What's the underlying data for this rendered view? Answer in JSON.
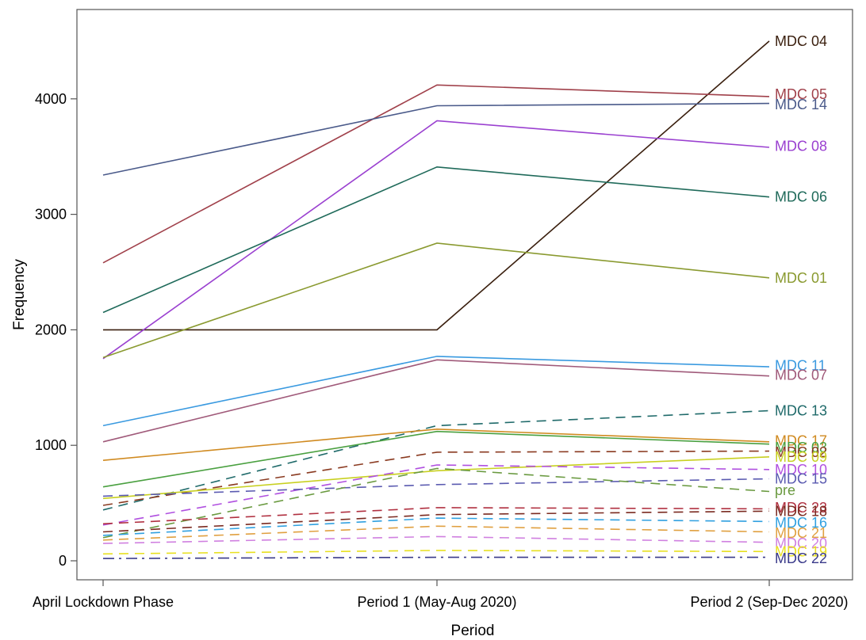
{
  "chart_data": {
    "type": "line",
    "xlabel": "Period",
    "ylabel": "Frequency",
    "categories": [
      "April Lockdown Phase",
      "Period 1 (May-Aug 2020)",
      "Period 2 (Sep-Dec 2020)"
    ],
    "ylim": [
      -100,
      4750
    ],
    "yticks": [
      0,
      1000,
      2000,
      3000,
      4000
    ],
    "grid": false,
    "legend": "none",
    "series": [
      {
        "name": "MDC 04",
        "values": [
          2000,
          2000,
          4500
        ],
        "color": "#3a1f0e",
        "dash": "solid"
      },
      {
        "name": "MDC 05",
        "values": [
          2580,
          4120,
          4020
        ],
        "color": "#a0404a",
        "dash": "solid"
      },
      {
        "name": "MDC 14",
        "values": [
          3340,
          3940,
          3960
        ],
        "color": "#4a5a8a",
        "dash": "solid"
      },
      {
        "name": "MDC 08",
        "values": [
          1750,
          3810,
          3580
        ],
        "color": "#9a40d0",
        "dash": "solid"
      },
      {
        "name": "MDC 06",
        "values": [
          2150,
          3410,
          3150
        ],
        "color": "#1f6a5a",
        "dash": "solid"
      },
      {
        "name": "MDC 01",
        "values": [
          1760,
          2750,
          2450
        ],
        "color": "#8a9a30",
        "dash": "solid"
      },
      {
        "name": "MDC 11",
        "values": [
          1170,
          1770,
          1680
        ],
        "color": "#3a9ae0",
        "dash": "solid"
      },
      {
        "name": "MDC 07",
        "values": [
          1030,
          1740,
          1600
        ],
        "color": "#a05a7a",
        "dash": "solid"
      },
      {
        "name": "MDC 13",
        "values": [
          440,
          1170,
          1300
        ],
        "color": "#1f6a6a",
        "dash": "dash"
      },
      {
        "name": "MDC 17",
        "values": [
          870,
          1140,
          1030
        ],
        "color": "#d08a20",
        "dash": "solid"
      },
      {
        "name": "MDC 03",
        "values": [
          640,
          1120,
          1010
        ],
        "color": "#4aa040",
        "dash": "solid"
      },
      {
        "name": "MDC 02",
        "values": [
          480,
          940,
          950
        ],
        "color": "#8a3a20",
        "dash": "dash"
      },
      {
        "name": "MDC 09",
        "values": [
          540,
          780,
          900
        ],
        "color": "#c8d020",
        "dash": "solid"
      },
      {
        "name": "MDC 10",
        "values": [
          310,
          830,
          790
        ],
        "color": "#b050e0",
        "dash": "dash"
      },
      {
        "name": "MDC 15",
        "values": [
          560,
          660,
          710
        ],
        "color": "#5a5ab0",
        "dash": "dash"
      },
      {
        "name": "pre",
        "values": [
          200,
          800,
          600
        ],
        "color": "#6a9a40",
        "dash": "dash"
      },
      {
        "name": "MDC 23",
        "values": [
          320,
          460,
          450
        ],
        "color": "#b03040",
        "dash": "dash"
      },
      {
        "name": "MDC 18",
        "values": [
          250,
          400,
          430
        ],
        "color": "#7a2a20",
        "dash": "dash"
      },
      {
        "name": "MDC 16",
        "values": [
          220,
          370,
          340
        ],
        "color": "#30a0e0",
        "dash": "dash"
      },
      {
        "name": "MDC 21",
        "values": [
          180,
          300,
          250
        ],
        "color": "#e0a040",
        "dash": "dash"
      },
      {
        "name": "MDC 20",
        "values": [
          150,
          210,
          160
        ],
        "color": "#d080e0",
        "dash": "dash"
      },
      {
        "name": "MDC 19",
        "values": [
          60,
          90,
          80
        ],
        "color": "#e8e020",
        "dash": "dash"
      },
      {
        "name": "MDC 22",
        "values": [
          20,
          30,
          30
        ],
        "color": "#3a3a8a",
        "dash": "dashdot"
      }
    ],
    "end_labels": [
      {
        "text": "MDC 04",
        "value": 4500,
        "color": "#3a1f0e"
      },
      {
        "text": "MDC 05",
        "value": 4040,
        "color": "#a0404a"
      },
      {
        "text": "MDC 14",
        "value": 3950,
        "color": "#4a5a8a"
      },
      {
        "text": "MDC 08",
        "value": 3590,
        "color": "#9a40d0"
      },
      {
        "text": "MDC 06",
        "value": 3150,
        "color": "#1f6a5a"
      },
      {
        "text": "MDC 01",
        "value": 2450,
        "color": "#8a9a30"
      },
      {
        "text": "MDC 11",
        "value": 1690,
        "color": "#3a9ae0"
      },
      {
        "text": "MDC 07",
        "value": 1610,
        "color": "#a05a7a"
      },
      {
        "text": "MDC 13",
        "value": 1300,
        "color": "#1f6a6a"
      },
      {
        "text": "MDC 17",
        "value": 1040,
        "color": "#d08a20"
      },
      {
        "text": "MDC 03",
        "value": 980,
        "color": "#4aa040"
      },
      {
        "text": "MDC 02",
        "value": 940,
        "color": "#8a3a20"
      },
      {
        "text": "MDC 09",
        "value": 900,
        "color": "#c8d020"
      },
      {
        "text": "MDC 10",
        "value": 790,
        "color": "#b050e0"
      },
      {
        "text": "MDC 15",
        "value": 710,
        "color": "#5a5ab0"
      },
      {
        "text": "pre",
        "value": 610,
        "color": "#6a9a40"
      },
      {
        "text": "MDC 23",
        "value": 460,
        "color": "#b03040"
      },
      {
        "text": "MDC 18",
        "value": 430,
        "color": "#7a2a20"
      },
      {
        "text": "MDC 16",
        "value": 330,
        "color": "#30a0e0"
      },
      {
        "text": "MDC 21",
        "value": 240,
        "color": "#e0a040"
      },
      {
        "text": "MDC 20",
        "value": 150,
        "color": "#d080e0"
      },
      {
        "text": "MDC 19",
        "value": 80,
        "color": "#e8e020"
      },
      {
        "text": "MDC 22",
        "value": 20,
        "color": "#3a3a8a"
      }
    ]
  }
}
